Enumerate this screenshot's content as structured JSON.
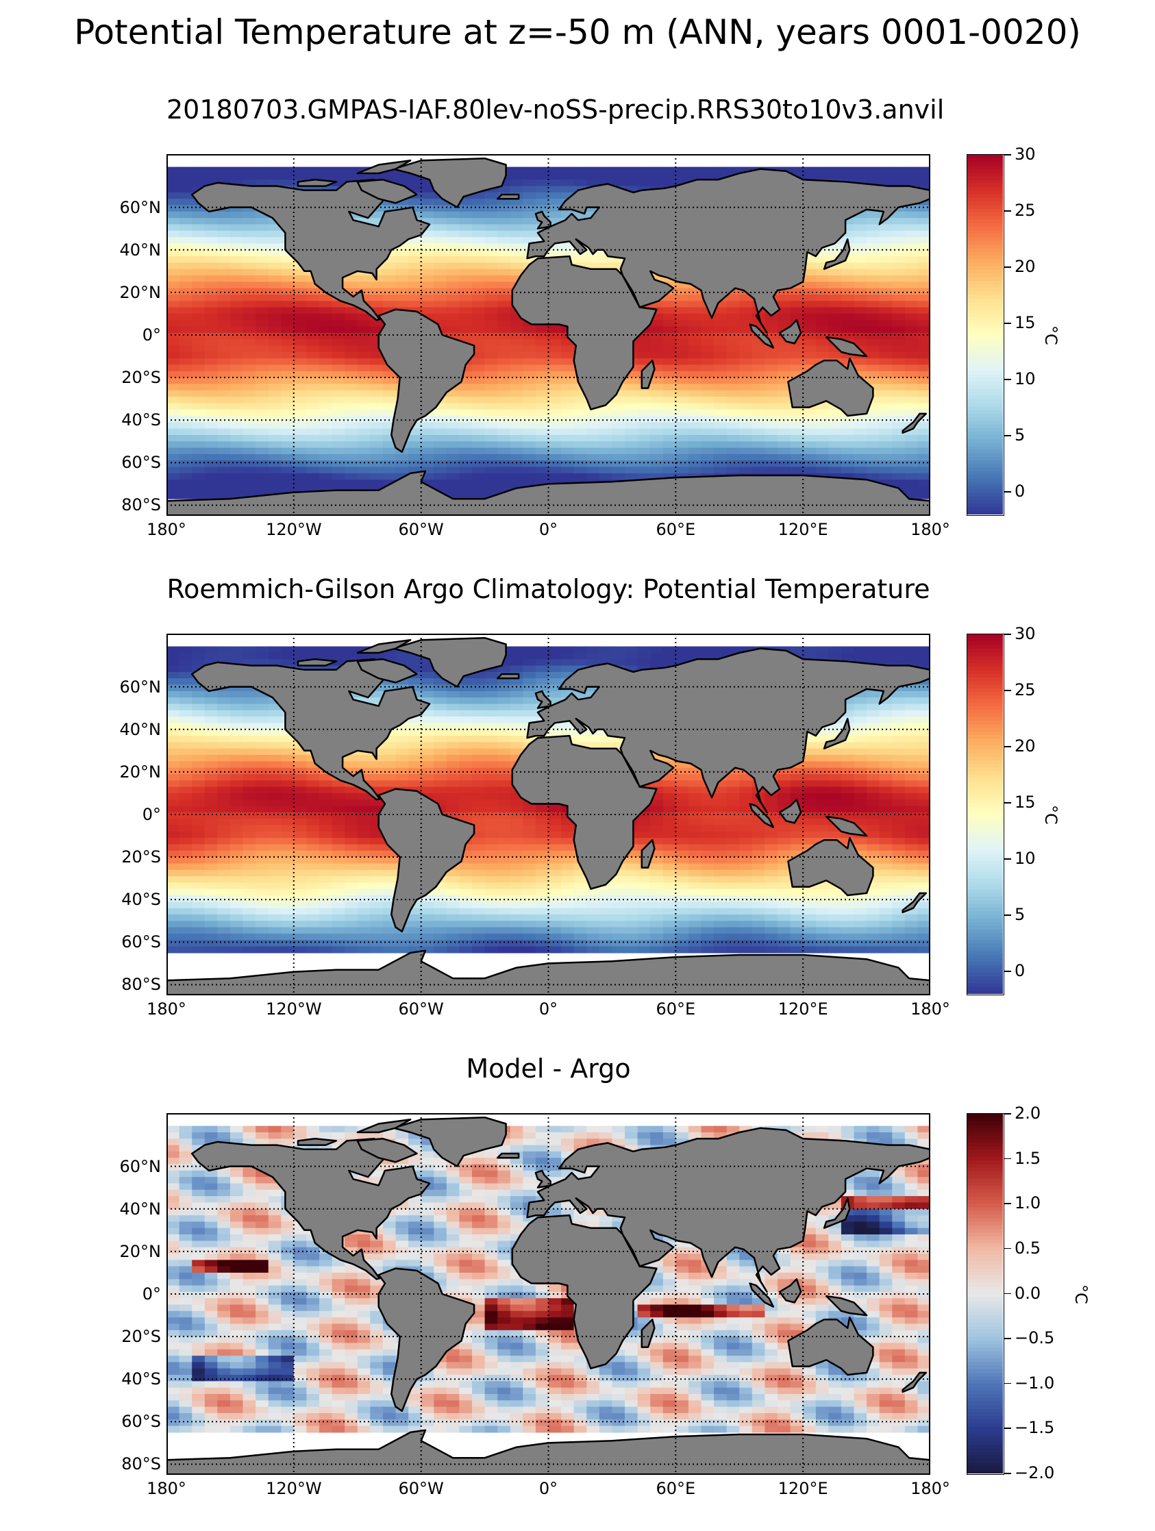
{
  "figure": {
    "suptitle": "Potential Temperature at z=-50 m (ANN, years 0001-0020)"
  },
  "panels": [
    {
      "title": "20180703.GMPAS-IAF.80lev-noSS-precip.RRS30to10v3.anvil",
      "colorbar": {
        "min": -2,
        "max": 30,
        "ticks": [
          "30",
          "25",
          "20",
          "15",
          "10",
          "5",
          "0"
        ],
        "tick_values": [
          30,
          25,
          20,
          15,
          10,
          5,
          0
        ],
        "label": "°C",
        "colormap": "RdYlBu_r"
      },
      "field": "model_potential_temperature"
    },
    {
      "title": "Roemmich-Gilson Argo Climatology: Potential Temperature",
      "colorbar": {
        "min": -2,
        "max": 30,
        "ticks": [
          "30",
          "25",
          "20",
          "15",
          "10",
          "5",
          "0"
        ],
        "tick_values": [
          30,
          25,
          20,
          15,
          10,
          5,
          0
        ],
        "label": "°C",
        "colormap": "RdYlBu_r"
      },
      "field": "argo_potential_temperature"
    },
    {
      "title": "Model - Argo",
      "colorbar": {
        "min": -2,
        "max": 2,
        "ticks": [
          "2.0",
          "1.5",
          "1.0",
          "0.5",
          "0.0",
          "−0.5",
          "−1.0",
          "−1.5",
          "−2.0"
        ],
        "tick_values": [
          2,
          1.5,
          1,
          0.5,
          0,
          -0.5,
          -1,
          -1.5,
          -2
        ],
        "label": "°C",
        "colormap": "RdBu_r"
      },
      "field": "difference"
    }
  ],
  "axes": {
    "lon_labels": [
      "180°",
      "120°W",
      "60°W",
      "0°",
      "60°E",
      "120°E",
      "180°"
    ],
    "lon_values": [
      -180,
      -120,
      -60,
      0,
      60,
      120,
      180
    ],
    "lat_labels": [
      "60°N",
      "40°N",
      "20°N",
      "0°",
      "20°S",
      "40°S",
      "60°S",
      "80°S"
    ],
    "lat_values": [
      60,
      40,
      20,
      0,
      -20,
      -40,
      -60,
      -80
    ],
    "lat_range": [
      -85,
      85
    ],
    "lon_range": [
      -180,
      180
    ],
    "gridlines": "dotted"
  },
  "colors": {
    "land": "#808080",
    "coastline": "#000000",
    "missing": "#ffffff"
  }
}
